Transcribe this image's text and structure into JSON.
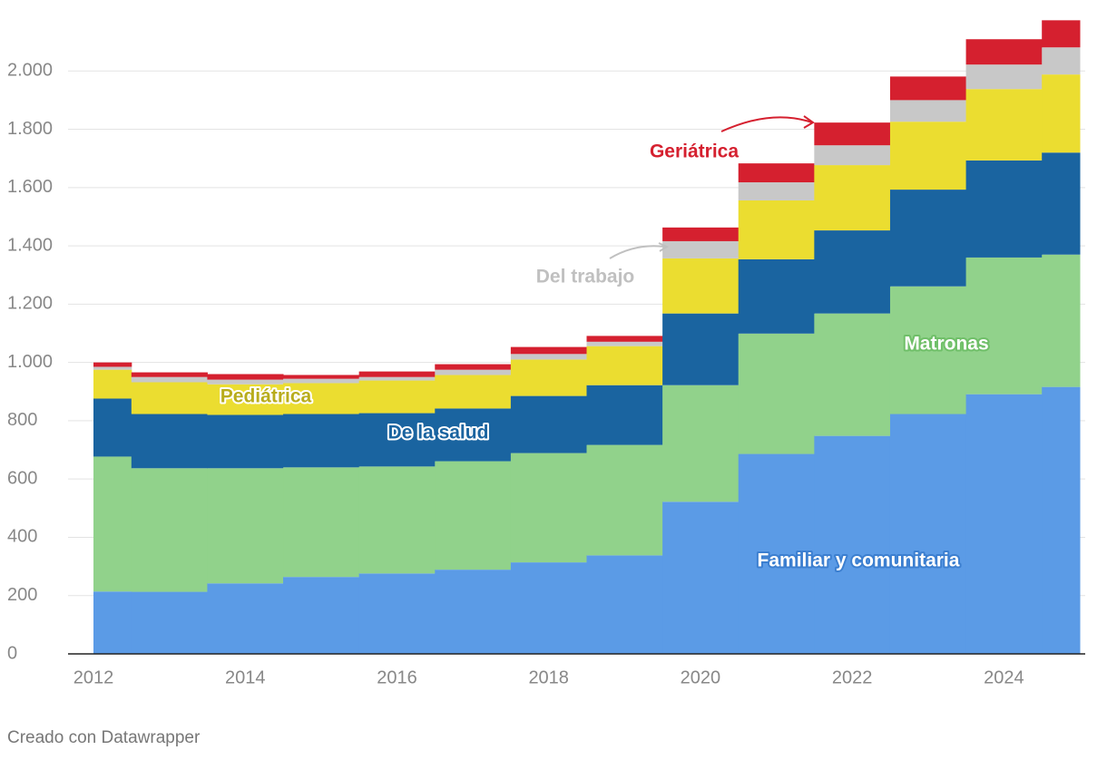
{
  "chart_data": {
    "type": "step-area",
    "footer": "Creado con Datawrapper",
    "x": [
      2012,
      2013,
      2014,
      2015,
      2016,
      2017,
      2018,
      2019,
      2020,
      2021,
      2022,
      2023,
      2024,
      2025
    ],
    "xlim": [
      2012,
      2025
    ],
    "xticks": [
      2012,
      2014,
      2016,
      2018,
      2020,
      2022,
      2024
    ],
    "ylim": [
      0,
      2200
    ],
    "yticks": [
      0,
      200,
      400,
      600,
      800,
      {
        "value": 1000,
        "label": "1.000"
      },
      {
        "value": 1200,
        "label": "1.200"
      },
      {
        "value": 1400,
        "label": "1.400"
      },
      {
        "value": 1600,
        "label": "1.600"
      },
      {
        "value": 1800,
        "label": "1.800"
      },
      {
        "value": 2000,
        "label": "2.000"
      }
    ],
    "grid": true,
    "stacked": true,
    "series": [
      {
        "name": "Familiar y comunitaria",
        "color": "#5b9be6",
        "values": [
          214,
          213,
          242,
          264,
          276,
          289,
          314,
          338,
          522,
          686,
          748,
          823,
          891,
          916
        ]
      },
      {
        "name": "Matronas",
        "color": "#91d28b",
        "values": [
          463,
          424,
          395,
          376,
          367,
          372,
          375,
          379,
          400,
          413,
          420,
          438,
          469,
          454
        ]
      },
      {
        "name": "De la salud",
        "color": "#1a64a0",
        "values": [
          199,
          186,
          183,
          183,
          183,
          181,
          196,
          205,
          246,
          255,
          285,
          332,
          333,
          350
        ]
      },
      {
        "name": "Pediátrica",
        "color": "#ebdd30",
        "values": [
          99,
          109,
          105,
          106,
          112,
          115,
          125,
          134,
          189,
          202,
          224,
          233,
          245,
          268
        ]
      },
      {
        "name": "Del trabajo",
        "color": "#c8c8c8",
        "values": [
          10,
          18,
          16,
          15,
          12,
          18,
          19,
          15,
          59,
          62,
          68,
          74,
          84,
          93
        ]
      },
      {
        "name": "Geriátrica",
        "color": "#d5202f",
        "values": [
          15,
          16,
          19,
          13,
          19,
          19,
          24,
          20,
          47,
          65,
          78,
          81,
          87,
          93
        ]
      }
    ]
  }
}
